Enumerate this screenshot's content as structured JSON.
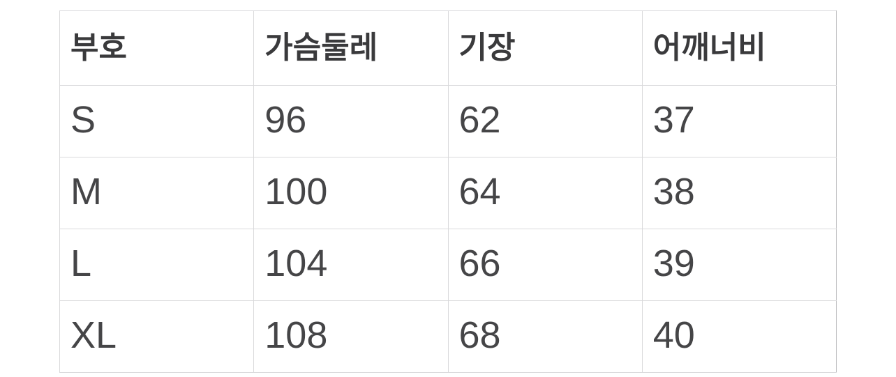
{
  "chart_data": {
    "type": "table",
    "title": "",
    "columns": [
      "부호",
      "가슴둘레",
      "기장",
      "어깨너비"
    ],
    "rows": [
      [
        "S",
        "96",
        "62",
        "37"
      ],
      [
        "M",
        "100",
        "64",
        "38"
      ],
      [
        "L",
        "104",
        "66",
        "39"
      ],
      [
        "XL",
        "108",
        "68",
        "40"
      ]
    ]
  },
  "colors": {
    "background": "#ffffff",
    "header_text": "#3a3a3c",
    "cell_text": "#454547",
    "grid_line": "#d9d9db",
    "right_border": "#bababc"
  }
}
